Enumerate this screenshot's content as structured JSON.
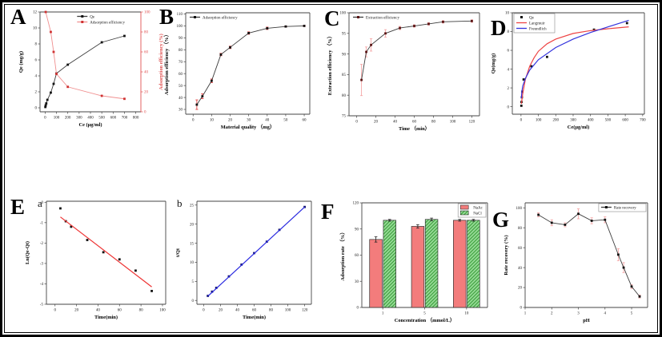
{
  "figure": {
    "background": "#ffffff",
    "border_color": "#000000"
  },
  "chart_data": [
    {
      "id": "A",
      "panel_letter": "A",
      "type": "line",
      "xlabel": "Ce (μg/ml)",
      "ylabel": "Qe (mg/g)",
      "y2label": "Adsorption efficiency (%)",
      "xlim": [
        -45,
        845
      ],
      "ylim": [
        -0.5,
        12
      ],
      "y2lim": [
        0,
        100
      ],
      "xticks": [
        0,
        100,
        200,
        300,
        400,
        500,
        600,
        700,
        800
      ],
      "yticks": [
        0,
        2,
        4,
        6,
        8,
        10,
        12
      ],
      "y2ticks": [
        0,
        20,
        40,
        60,
        80,
        100
      ],
      "y2color": "#e05252",
      "legend": {
        "position": "top-right",
        "border": false
      },
      "series": [
        {
          "name": "Qe",
          "color": "#3c3c3c",
          "marker_color": "#111111",
          "line": true,
          "marker": true,
          "x": [
            2,
            5,
            10,
            20,
            50,
            75,
            100,
            200,
            500,
            700
          ],
          "y": [
            0.1,
            0.3,
            0.55,
            1.0,
            1.9,
            3.0,
            4.3,
            5.4,
            8.2,
            9.0
          ]
        },
        {
          "name": "Adsorption efficiency",
          "axis": "y2",
          "color": "#f09090",
          "marker_color": "#cf3232",
          "line": true,
          "marker": true,
          "x": [
            5,
            50,
            75,
            100,
            200,
            500,
            700
          ],
          "y": [
            100,
            80,
            60,
            38,
            25,
            16,
            13
          ]
        }
      ]
    },
    {
      "id": "B",
      "panel_letter": "B",
      "type": "line",
      "xlabel": "Material quality （mg）",
      "ylabel": "Adsorption efficiency （%）",
      "xlim": [
        -4,
        63
      ],
      "ylim": [
        26,
        111
      ],
      "xticks": [
        0,
        10,
        20,
        30,
        40,
        50,
        60
      ],
      "yticks": [
        30,
        40,
        50,
        60,
        70,
        80,
        90,
        100,
        110
      ],
      "legend": {
        "position": "top-left",
        "border": false
      },
      "series": [
        {
          "name": "Adsorption efficiency",
          "color": "#3c3c3c",
          "marker_color": "#111111",
          "line": true,
          "marker": true,
          "x": [
            2,
            5,
            10,
            15,
            20,
            30,
            40,
            50,
            60
          ],
          "y": [
            34,
            41,
            54,
            76,
            82,
            94,
            98,
            99.5,
            100
          ],
          "errors": [
            4,
            2,
            1.5,
            1,
            1,
            1,
            1,
            0.5,
            0.5
          ],
          "error_color": "#e03030"
        }
      ]
    },
    {
      "id": "C",
      "panel_letter": "C",
      "type": "line",
      "xlabel": "Time （min）",
      "ylabel": "Extraction efficiency （%）",
      "xlim": [
        -8,
        128
      ],
      "ylim": [
        75,
        100
      ],
      "xticks": [
        0,
        20,
        40,
        60,
        80,
        100,
        120
      ],
      "yticks": [
        75,
        80,
        85,
        90,
        95,
        100
      ],
      "legend": {
        "position": "top-left",
        "border": false
      },
      "series": [
        {
          "name": "Extraction efficiency",
          "color": "#3c3c3c",
          "marker_color": "#5a1414",
          "line": true,
          "marker": true,
          "x": [
            5,
            10,
            15,
            30,
            45,
            60,
            75,
            90,
            120
          ],
          "y": [
            83.7,
            90.5,
            92.2,
            95,
            96.3,
            96.8,
            97.3,
            97.8,
            98
          ],
          "errors": [
            3.8,
            1.2,
            1.5,
            0.9,
            0.4,
            0.3,
            0.3,
            0.3,
            0.3
          ],
          "error_color": "#f4a0a0"
        }
      ]
    },
    {
      "id": "D",
      "panel_letter": "D",
      "type": "scatter",
      "xlabel": "Ce(μg/ml)",
      "ylabel": "Qe(mg/g)",
      "xlim": [
        -50,
        710
      ],
      "ylim": [
        -0.8,
        10
      ],
      "xticks": [
        0,
        100,
        200,
        300,
        400,
        500,
        600,
        700
      ],
      "yticks": [
        0,
        2,
        4,
        6,
        8,
        10
      ],
      "legend": {
        "position": "top-left",
        "border": true
      },
      "series": [
        {
          "name": "Qe",
          "color": "#111111",
          "marker_color": "#111111",
          "line": false,
          "marker": true,
          "x": [
            2,
            3,
            5,
            8,
            15,
            60,
            150,
            420,
            610
          ],
          "y": [
            0.1,
            0.5,
            1.0,
            1.6,
            2.9,
            4.3,
            5.3,
            8.2,
            8.9
          ]
        },
        {
          "name": "Langmuir",
          "color": "#ee4444",
          "line": true,
          "marker": false,
          "width": 1.2,
          "x": [
            2,
            10,
            25,
            50,
            75,
            100,
            150,
            200,
            300,
            400,
            500,
            620
          ],
          "y": [
            0.3,
            1.4,
            2.9,
            4.3,
            5.2,
            5.9,
            6.7,
            7.2,
            7.8,
            8.1,
            8.3,
            8.5
          ]
        },
        {
          "name": "Freundlich",
          "color": "#3333dd",
          "line": true,
          "marker": false,
          "width": 1.2,
          "x": [
            2,
            5,
            10,
            25,
            50,
            100,
            200,
            300,
            400,
            500,
            620
          ],
          "y": [
            0.9,
            1.6,
            2.2,
            3.0,
            3.9,
            5.0,
            6.3,
            7.2,
            7.9,
            8.5,
            9.2
          ]
        }
      ]
    },
    {
      "id": "Ea",
      "panel_letter": "E",
      "sub_label": "a",
      "type": "scatter",
      "xlabel": "Time(min)",
      "ylabel": "Ln(Qe-Qt)",
      "xlim": [
        -8,
        103
      ],
      "ylim": [
        -5,
        0.05
      ],
      "xticks": [
        0,
        20,
        40,
        60,
        80,
        100
      ],
      "yticks": [
        0,
        -1,
        -2,
        -3,
        -4,
        -5
      ],
      "series": [
        {
          "name": "",
          "color": "#111111",
          "marker_color": "#111111",
          "line": false,
          "marker": true,
          "x": [
            5,
            10,
            15,
            30,
            45,
            60,
            75,
            90
          ],
          "y": [
            -0.3,
            -0.93,
            -1.2,
            -1.85,
            -2.45,
            -2.8,
            -3.35,
            -4.35
          ]
        },
        {
          "name": "",
          "color": "#ee3333",
          "line": true,
          "marker": false,
          "width": 1.2,
          "x": [
            5,
            90
          ],
          "y": [
            -0.72,
            -4.15
          ]
        }
      ]
    },
    {
      "id": "Eb",
      "panel_letter": "",
      "sub_label": "b",
      "type": "scatter",
      "xlabel": "Time(min)",
      "ylabel": "t/Qt",
      "xlim": [
        -8,
        128
      ],
      "ylim": [
        -1,
        26
      ],
      "xticks": [
        0,
        20,
        40,
        60,
        80,
        100,
        120
      ],
      "yticks": [
        0,
        5,
        10,
        15,
        20,
        25
      ],
      "series": [
        {
          "name": "",
          "color": "#16166a",
          "marker_color": "#16166a",
          "line": false,
          "marker": true,
          "x": [
            5,
            10,
            15,
            30,
            45,
            60,
            75,
            90,
            120
          ],
          "y": [
            1.2,
            2.3,
            3.3,
            6.3,
            9.4,
            12.4,
            15.4,
            18.5,
            24.5
          ]
        },
        {
          "name": "",
          "color": "#2a2ae0",
          "line": true,
          "marker": false,
          "width": 1.2,
          "x": [
            5,
            120
          ],
          "y": [
            1.1,
            24.5
          ]
        }
      ]
    },
    {
      "id": "F",
      "panel_letter": "F",
      "type": "bar",
      "xlabel": "Concentration （mmol/L）",
      "ylabel": "Adsorption rate （%）",
      "ylim": [
        0,
        120
      ],
      "yticks": [
        0,
        30,
        60,
        90,
        120
      ],
      "categories": [
        "1",
        "5",
        "10"
      ],
      "legend": {
        "position": "top-right",
        "border": true
      },
      "series": [
        {
          "name": "NaAc",
          "color": "#f37c7c",
          "hatch": false,
          "values": [
            78,
            93,
            100
          ],
          "errors": [
            3,
            2,
            1
          ],
          "error_color": "#222222"
        },
        {
          "name": "NaCl",
          "color": "#97dc97",
          "hatch": true,
          "hatch_color": "#3a9c3a",
          "values": [
            100,
            101,
            100
          ],
          "errors": [
            1,
            1.5,
            1
          ],
          "error_color": "#222222"
        }
      ]
    },
    {
      "id": "G",
      "panel_letter": "G",
      "type": "line",
      "xlabel": "pH",
      "ylabel": "Rate recovery (%)",
      "xlim": [
        1,
        5.6
      ],
      "ylim": [
        0,
        105
      ],
      "xticks": [
        1,
        2,
        3,
        4,
        5
      ],
      "yticks": [
        0,
        20,
        40,
        60,
        80,
        100
      ],
      "legend": {
        "position": "top-right",
        "border": true
      },
      "series": [
        {
          "name": "Rate recovery",
          "color": "#3c3c3c",
          "marker_color": "#111111",
          "line": true,
          "marker": true,
          "x": [
            1.5,
            2,
            2.5,
            3,
            3.5,
            4,
            4.5,
            4.7,
            5,
            5.3
          ],
          "y": [
            93,
            85,
            83,
            94,
            87,
            88,
            53,
            40,
            21,
            11
          ],
          "errors": [
            2,
            3,
            2,
            5,
            3,
            3,
            6,
            5,
            2,
            1.5
          ],
          "error_color": "#f4a0a0"
        }
      ]
    }
  ]
}
